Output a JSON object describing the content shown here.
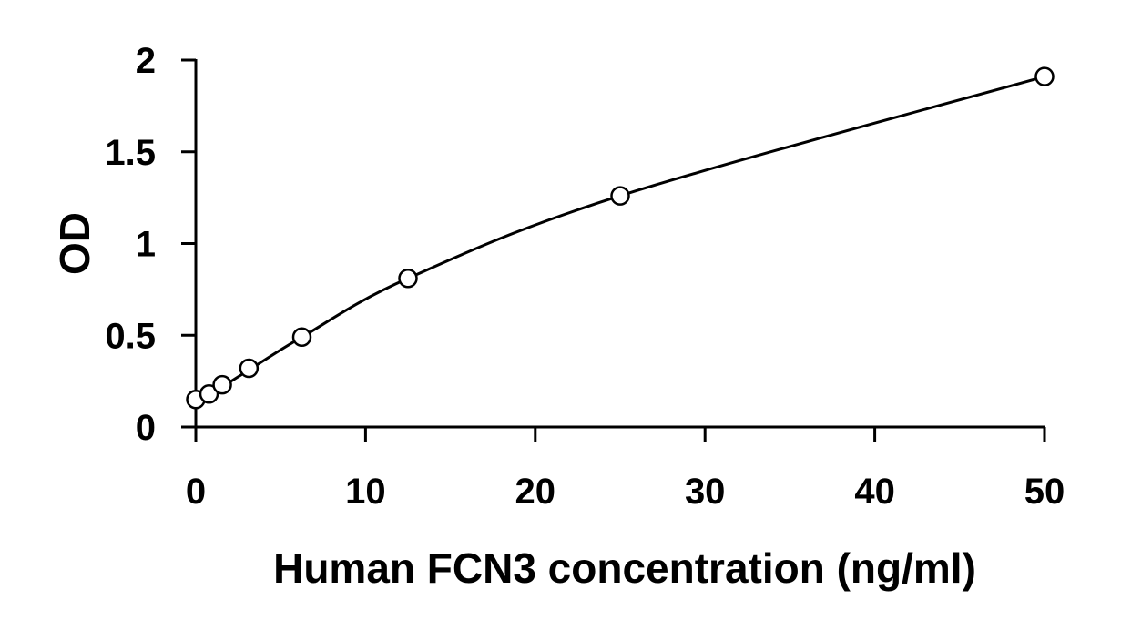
{
  "chart_data": {
    "type": "scatter",
    "title": "",
    "xlabel": "Human FCN3 concentration (ng/ml)",
    "ylabel": "OD",
    "xlim": [
      0,
      50
    ],
    "ylim": [
      0,
      2
    ],
    "xticks": [
      0,
      10,
      20,
      30,
      40,
      50
    ],
    "yticks": [
      0,
      0.5,
      1,
      1.5,
      2
    ],
    "xtick_labels": [
      "0",
      "10",
      "20",
      "30",
      "40",
      "50"
    ],
    "ytick_labels": [
      "0",
      "0.5",
      "1",
      "1.5",
      "2"
    ],
    "grid": false,
    "legend": "none",
    "series": [
      {
        "marker": "open-circle",
        "x": [
          0,
          0.78,
          1.56,
          3.13,
          6.25,
          12.5,
          25,
          50
        ],
        "y": [
          0.15,
          0.18,
          0.23,
          0.32,
          0.49,
          0.81,
          1.26,
          1.91
        ]
      }
    ],
    "fit": {
      "type": "smooth-curve",
      "x": [
        0,
        0.78,
        1.56,
        3.13,
        6.25,
        12.5,
        25,
        50
      ],
      "y": [
        0.15,
        0.18,
        0.22,
        0.31,
        0.49,
        0.81,
        1.26,
        1.91
      ]
    }
  }
}
